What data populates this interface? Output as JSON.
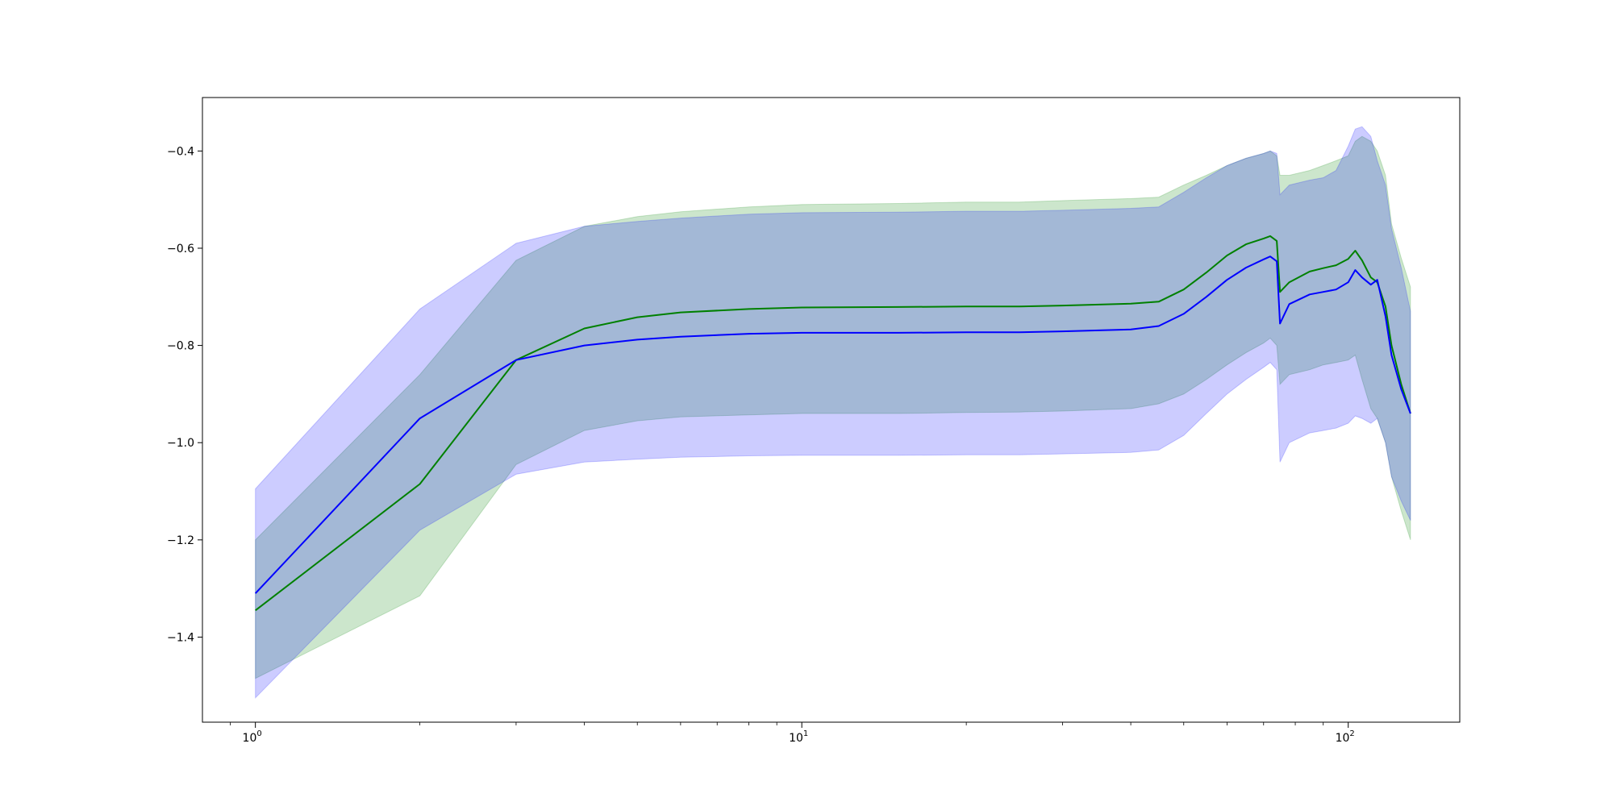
{
  "chart_data": {
    "type": "line",
    "title": "",
    "xlabel": "",
    "ylabel": "",
    "xscale": "log",
    "xlim": [
      0.8,
      160
    ],
    "ylim": [
      -1.575,
      -0.29
    ],
    "grid": false,
    "legend": "none",
    "x_ticks": [
      {
        "value": 1,
        "base": "10",
        "exp": "0"
      },
      {
        "value": 10,
        "base": "10",
        "exp": "1"
      },
      {
        "value": 100,
        "base": "10",
        "exp": "2"
      }
    ],
    "y_ticks": [
      {
        "value": -0.4,
        "label": "−0.4"
      },
      {
        "value": -0.6,
        "label": "−0.6"
      },
      {
        "value": -0.8,
        "label": "−0.8"
      },
      {
        "value": -1.0,
        "label": "−1.0"
      },
      {
        "value": -1.2,
        "label": "−1.2"
      },
      {
        "value": -1.4,
        "label": "−1.4"
      }
    ],
    "series": [
      {
        "color": "#008000",
        "band_color": "#008000",
        "x": [
          1,
          2,
          3,
          4,
          5,
          6,
          8,
          10,
          15,
          20,
          25,
          30,
          40,
          45,
          50,
          55,
          60,
          65,
          70,
          72,
          74,
          75,
          78,
          85,
          90,
          95,
          100,
          103,
          106,
          110,
          113,
          117,
          120,
          125,
          130
        ],
        "mean": [
          -1.345,
          -1.085,
          -0.83,
          -0.765,
          -0.742,
          -0.732,
          -0.725,
          -0.722,
          -0.721,
          -0.72,
          -0.72,
          -0.718,
          -0.714,
          -0.71,
          -0.685,
          -0.65,
          -0.615,
          -0.592,
          -0.58,
          -0.575,
          -0.585,
          -0.69,
          -0.67,
          -0.648,
          -0.641,
          -0.635,
          -0.622,
          -0.605,
          -0.625,
          -0.66,
          -0.67,
          -0.72,
          -0.8,
          -0.88,
          -0.94
        ],
        "upper": [
          -1.2,
          -0.86,
          -0.625,
          -0.555,
          -0.535,
          -0.525,
          -0.515,
          -0.51,
          -0.508,
          -0.505,
          -0.505,
          -0.502,
          -0.498,
          -0.495,
          -0.47,
          -0.45,
          -0.43,
          -0.415,
          -0.405,
          -0.4,
          -0.41,
          -0.45,
          -0.45,
          -0.44,
          -0.43,
          -0.42,
          -0.41,
          -0.38,
          -0.37,
          -0.38,
          -0.4,
          -0.45,
          -0.55,
          -0.62,
          -0.68
        ],
        "lower": [
          -1.485,
          -1.315,
          -1.045,
          -0.975,
          -0.955,
          -0.947,
          -0.943,
          -0.94,
          -0.94,
          -0.938,
          -0.937,
          -0.935,
          -0.93,
          -0.92,
          -0.9,
          -0.87,
          -0.84,
          -0.815,
          -0.795,
          -0.785,
          -0.8,
          -0.88,
          -0.86,
          -0.85,
          -0.84,
          -0.835,
          -0.83,
          -0.82,
          -0.87,
          -0.93,
          -0.95,
          -1.0,
          -1.07,
          -1.14,
          -1.2
        ]
      },
      {
        "color": "#0000ff",
        "band_color": "#0000ff",
        "x": [
          1,
          2,
          3,
          4,
          5,
          6,
          8,
          10,
          15,
          20,
          25,
          30,
          40,
          45,
          50,
          55,
          60,
          65,
          70,
          72,
          74,
          75,
          78,
          85,
          90,
          95,
          100,
          103,
          106,
          110,
          113,
          117,
          120,
          125,
          130
        ],
        "mean": [
          -1.31,
          -0.95,
          -0.83,
          -0.8,
          -0.788,
          -0.782,
          -0.776,
          -0.774,
          -0.774,
          -0.773,
          -0.773,
          -0.771,
          -0.767,
          -0.76,
          -0.735,
          -0.7,
          -0.665,
          -0.64,
          -0.623,
          -0.617,
          -0.627,
          -0.755,
          -0.715,
          -0.695,
          -0.69,
          -0.685,
          -0.67,
          -0.645,
          -0.66,
          -0.675,
          -0.665,
          -0.74,
          -0.82,
          -0.89,
          -0.94
        ],
        "upper": [
          -1.095,
          -0.725,
          -0.59,
          -0.555,
          -0.545,
          -0.538,
          -0.53,
          -0.527,
          -0.526,
          -0.524,
          -0.524,
          -0.522,
          -0.518,
          -0.515,
          -0.485,
          -0.455,
          -0.43,
          -0.415,
          -0.405,
          -0.4,
          -0.405,
          -0.49,
          -0.47,
          -0.46,
          -0.455,
          -0.44,
          -0.39,
          -0.355,
          -0.35,
          -0.37,
          -0.42,
          -0.47,
          -0.56,
          -0.64,
          -0.73
        ],
        "lower": [
          -1.525,
          -1.18,
          -1.065,
          -1.04,
          -1.034,
          -1.03,
          -1.027,
          -1.026,
          -1.026,
          -1.025,
          -1.025,
          -1.023,
          -1.02,
          -1.015,
          -0.985,
          -0.94,
          -0.9,
          -0.87,
          -0.845,
          -0.835,
          -0.85,
          -1.04,
          -1.0,
          -0.98,
          -0.975,
          -0.97,
          -0.96,
          -0.945,
          -0.95,
          -0.96,
          -0.95,
          -1.0,
          -1.07,
          -1.12,
          -1.16
        ]
      }
    ]
  }
}
